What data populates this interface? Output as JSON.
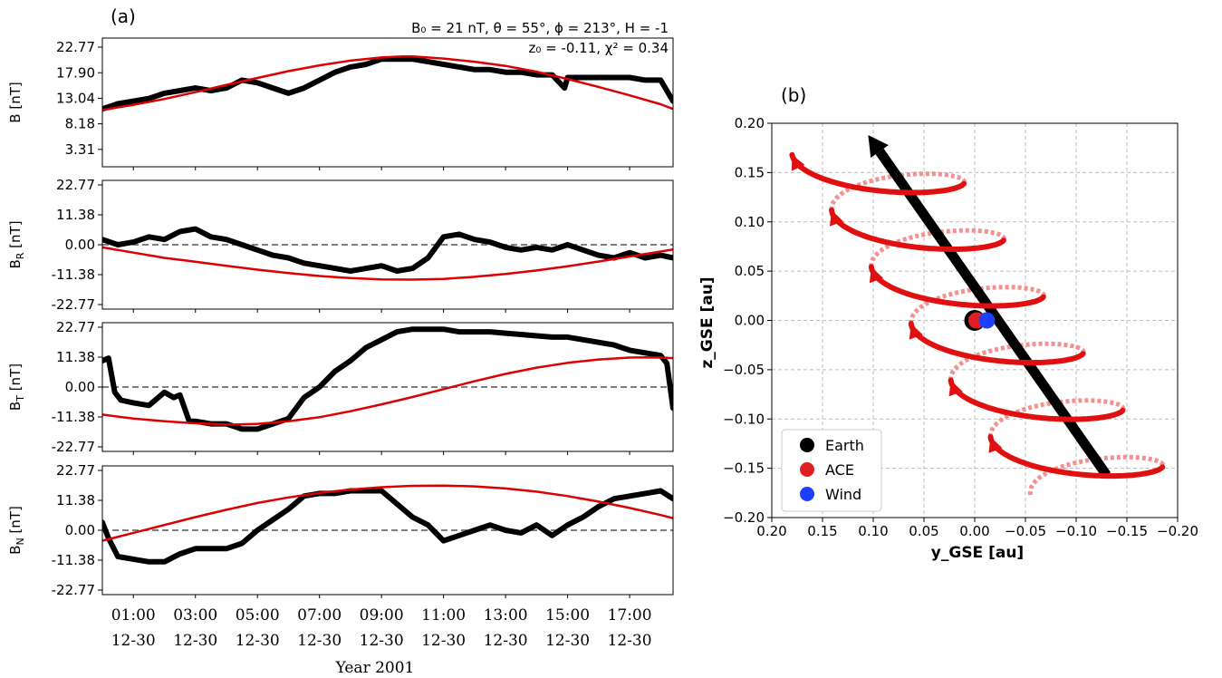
{
  "chart_data": [
    {
      "panel_label": "(a)",
      "type": "line",
      "annotation_line1": "B₀ = 21 nT, θ = 55°, ϕ = 213°, H = -1",
      "annotation_line2": "z₀ = -0.11, χ² = 0.34",
      "xlabel": "Year 2001",
      "x_tick_hours": [
        1,
        3,
        5,
        7,
        9,
        11,
        13,
        15,
        17
      ],
      "x_tick_labels_time": [
        "01:00",
        "03:00",
        "05:00",
        "07:00",
        "09:00",
        "11:00",
        "13:00",
        "15:00",
        "17:00"
      ],
      "x_tick_labels_date": [
        "12-30",
        "12-30",
        "12-30",
        "12-30",
        "12-30",
        "12-30",
        "12-30",
        "12-30",
        "12-30"
      ],
      "xlim_hours": [
        0,
        18.4
      ],
      "subplots": [
        {
          "ylabel": "B [nT]",
          "ylim": [
            0,
            24.5
          ],
          "yticks": [
            3.31,
            8.18,
            13.04,
            17.9,
            22.77
          ],
          "ytick_labels": [
            "3.31",
            "8.18",
            "13.04",
            "17.90",
            "22.77"
          ],
          "zero_line": false,
          "series": [
            {
              "color": "#000000",
              "x": [
                0,
                0.5,
                1,
                1.5,
                2,
                2.5,
                3,
                3.5,
                4,
                4.5,
                5,
                5.5,
                6,
                6.5,
                7,
                7.5,
                8,
                8.5,
                9,
                9.5,
                10,
                10.5,
                11,
                11.5,
                12,
                12.5,
                13,
                13.5,
                14,
                14.5,
                14.9,
                15,
                15.5,
                16,
                16.5,
                17,
                17.5,
                18,
                18.4
              ],
              "y": [
                11,
                12,
                12.5,
                13,
                14,
                14.5,
                15,
                14.5,
                15,
                16.5,
                16,
                15,
                14,
                15,
                16.5,
                18,
                19,
                19.5,
                20.5,
                20.5,
                20.5,
                20,
                19.5,
                19,
                18.5,
                18.5,
                18,
                18,
                17.5,
                17.5,
                15,
                17,
                17,
                17,
                17,
                17,
                16.5,
                16.5,
                12.5
              ]
            },
            {
              "color": "#dd0000",
              "x": [
                0,
                1,
                2,
                3,
                4,
                5,
                6,
                7,
                8,
                9,
                9.7,
                10,
                11,
                12,
                13,
                14,
                15,
                16,
                17,
                18,
                18.4
              ],
              "y": [
                10.8,
                11.8,
                12.9,
                14.2,
                15.6,
                16.9,
                18.2,
                19.3,
                20.2,
                20.8,
                21,
                21,
                20.6,
                20,
                19.2,
                18.1,
                16.7,
                15.2,
                13.6,
                11.9,
                11
              ]
            }
          ]
        },
        {
          "ylabel": "B_R [nT]",
          "ylim": [
            -24.5,
            24.5
          ],
          "yticks": [
            -22.77,
            -11.38,
            0.0,
            11.38,
            22.77
          ],
          "ytick_labels": [
            "-22.77",
            "-11.38",
            "0.00",
            "11.38",
            "22.77"
          ],
          "zero_line": true,
          "series": [
            {
              "color": "#000000",
              "x": [
                0,
                0.5,
                1,
                1.5,
                2,
                2.5,
                3,
                3.5,
                4,
                4.5,
                5,
                5.5,
                6,
                6.5,
                7,
                7.5,
                8,
                8.5,
                9,
                9.5,
                10,
                10.5,
                11,
                11.5,
                12,
                12.5,
                13,
                13.5,
                14,
                14.5,
                15,
                15.5,
                16,
                16.5,
                17,
                17.5,
                18,
                18.4
              ],
              "y": [
                2,
                0,
                1,
                3,
                2,
                5,
                6,
                3,
                2,
                0,
                -2,
                -4,
                -5,
                -7,
                -8,
                -9,
                -10,
                -9,
                -8,
                -10,
                -9,
                -5,
                3,
                4,
                2,
                1,
                -1,
                -2,
                -1,
                -2,
                0,
                -2,
                -4,
                -5,
                -3,
                -5,
                -4,
                -5
              ]
            },
            {
              "color": "#dd0000",
              "x": [
                0,
                1,
                2,
                3,
                4,
                5,
                6,
                7,
                8,
                9,
                10,
                11,
                12,
                13,
                14,
                15,
                16,
                17,
                18,
                18.4
              ],
              "y": [
                -1,
                -3,
                -5,
                -6.5,
                -8,
                -9.5,
                -10.8,
                -11.9,
                -12.7,
                -13.2,
                -13.3,
                -13,
                -12.2,
                -11.1,
                -9.8,
                -8.2,
                -6.4,
                -4.5,
                -2.6,
                -1.8
              ]
            }
          ]
        },
        {
          "ylabel": "B_T [nT]",
          "ylim": [
            -24.5,
            24.5
          ],
          "yticks": [
            -22.77,
            -11.38,
            0.0,
            11.38,
            22.77
          ],
          "ytick_labels": [
            "-22.77",
            "-11.38",
            "0.00",
            "11.38",
            "22.77"
          ],
          "zero_line": true,
          "series": [
            {
              "color": "#000000",
              "x": [
                0,
                0.2,
                0.4,
                0.6,
                1,
                1.5,
                2,
                2.3,
                2.5,
                2.8,
                3,
                3.5,
                4,
                4.5,
                5,
                5.5,
                6,
                6.5,
                7,
                7.5,
                8,
                8.5,
                9,
                9.5,
                10,
                10.5,
                11,
                11.5,
                12,
                12.5,
                13,
                13.5,
                14,
                14.5,
                15,
                15.5,
                16,
                16.5,
                17,
                17.5,
                18,
                18.2,
                18.4
              ],
              "y": [
                10,
                11,
                -2,
                -5,
                -6,
                -7,
                -2,
                -4,
                -3,
                -13,
                -13,
                -14,
                -14,
                -16,
                -16,
                -14,
                -12,
                -4,
                0,
                6,
                10,
                15,
                18,
                21,
                22,
                22,
                22,
                21,
                21,
                21,
                20.5,
                20,
                19.5,
                19,
                19,
                18,
                17,
                16,
                14,
                13,
                12,
                9,
                -8
              ]
            },
            {
              "color": "#dd0000",
              "x": [
                0,
                1,
                2,
                3,
                4,
                4.2,
                5,
                6,
                7,
                8,
                9,
                10,
                11,
                12,
                13,
                14,
                15,
                16,
                17,
                17.5,
                18,
                18.4
              ],
              "y": [
                -10.5,
                -12,
                -13,
                -13.8,
                -14.3,
                -14.3,
                -14,
                -13,
                -11.5,
                -9.2,
                -6.6,
                -3.8,
                -0.8,
                2.2,
                5,
                7.4,
                9.2,
                10.5,
                11.2,
                11.3,
                11.2,
                11
              ]
            }
          ]
        },
        {
          "ylabel": "B_N [nT]",
          "ylim": [
            -24.5,
            24.5
          ],
          "yticks": [
            -22.77,
            -11.38,
            0.0,
            11.38,
            22.77
          ],
          "ytick_labels": [
            "-22.77",
            "-11.38",
            "0.00",
            "11.38",
            "22.77"
          ],
          "zero_line": true,
          "series": [
            {
              "color": "#000000",
              "x": [
                0,
                0.2,
                0.5,
                1,
                1.5,
                2,
                2.5,
                3,
                3.5,
                4,
                4.5,
                5,
                5.5,
                6,
                6.5,
                7,
                7.5,
                8,
                8.5,
                9,
                9.5,
                10,
                10.5,
                11,
                11.5,
                12,
                12.5,
                13,
                13.5,
                14,
                14.5,
                15,
                15.5,
                16,
                16.5,
                17,
                17.5,
                18,
                18.4
              ],
              "y": [
                3,
                -3,
                -10,
                -11,
                -12,
                -12,
                -9,
                -7,
                -7,
                -7,
                -5,
                0,
                4,
                8,
                13,
                14,
                14,
                15,
                15,
                15,
                10,
                5,
                2,
                -4,
                -2,
                0,
                2,
                0,
                -1,
                2,
                -2,
                2,
                5,
                9,
                12,
                13,
                14,
                15,
                12
              ]
            },
            {
              "color": "#dd0000",
              "x": [
                0,
                1,
                2,
                3,
                4,
                5,
                6,
                7,
                8,
                9,
                10,
                11,
                12,
                13,
                14,
                15,
                16,
                17,
                18,
                18.4
              ],
              "y": [
                -4,
                -1,
                2,
                5,
                7.8,
                10.4,
                12.5,
                14.2,
                15.5,
                16.4,
                16.9,
                17,
                16.7,
                15.9,
                14.7,
                13,
                10.9,
                8.5,
                5.8,
                4.6
              ]
            }
          ]
        }
      ]
    },
    {
      "panel_label": "(b)",
      "type": "scatter",
      "xlabel": "y_GSE [au]",
      "ylabel": "z_GSE [au]",
      "xlim": [
        0.2,
        -0.2
      ],
      "ylim": [
        -0.2,
        0.2
      ],
      "xticks": [
        0.2,
        0.15,
        0.1,
        0.05,
        0.0,
        -0.05,
        -0.1,
        -0.15,
        -0.2
      ],
      "xtick_labels": [
        "0.20",
        "0.15",
        "0.10",
        "0.05",
        "0.00",
        "−0.05",
        "−0.10",
        "−0.15",
        "−0.20"
      ],
      "yticks": [
        0.2,
        0.15,
        0.1,
        0.05,
        0.0,
        -0.05,
        -0.1,
        -0.15,
        -0.2
      ],
      "ytick_labels": [
        "0.20",
        "0.15",
        "0.10",
        "0.05",
        "0.00",
        "−0.05",
        "−0.10",
        "−0.15",
        "−0.20"
      ],
      "grid": true,
      "legend_position": "lower-left",
      "points": [
        {
          "name": "Earth",
          "color": "#000000",
          "y": 0.0,
          "z": 0.0
        },
        {
          "name": "ACE",
          "color": "#e02020",
          "y": 0.0,
          "z": 0.0
        },
        {
          "name": "Wind",
          "color": "#1f3fff",
          "y": -0.012,
          "z": 0.0
        }
      ],
      "axis_arrow": {
        "color": "#000000",
        "from": [
          -0.13,
          -0.157
        ],
        "to": [
          0.105,
          0.188
        ]
      },
      "helix": {
        "color": "#e01010",
        "back_color": "#f59090",
        "loops": 6,
        "z_range": [
          -0.19,
          0.19
        ],
        "center_from": [
          -0.13,
          -0.157
        ],
        "center_to": [
          0.105,
          0.188
        ],
        "radius_y": 0.075,
        "radius_z": 0.022
      }
    }
  ]
}
